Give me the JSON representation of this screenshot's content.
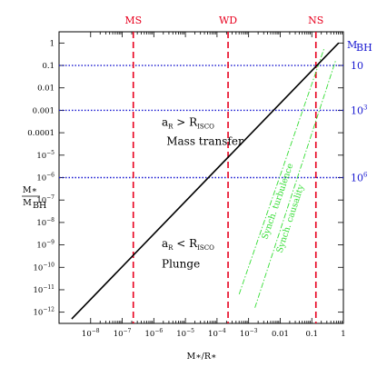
{
  "chart_data": {
    "type": "line",
    "xlabel": "M∗/R∗",
    "ylabel_main": "M∗",
    "ylabel_sub": "M",
    "ylabel_sub_index": "BH",
    "xscale": "log",
    "yscale": "log",
    "xlim_exp": [
      -9,
      0
    ],
    "ylim_exp": [
      -12.5,
      0.5
    ],
    "x_ticks": [
      {
        "base": "10",
        "exp": "−8",
        "v": -8
      },
      {
        "base": "10",
        "exp": "−7",
        "v": -7
      },
      {
        "base": "10",
        "exp": "−6",
        "v": -6
      },
      {
        "base": "10",
        "exp": "−5",
        "v": -5
      },
      {
        "base": "10",
        "exp": "−4",
        "v": -4
      },
      {
        "base": "10",
        "exp": "−3",
        "v": -3
      },
      {
        "base": "0.01",
        "exp": "",
        "v": -2
      },
      {
        "base": "0.1",
        "exp": "",
        "v": -1
      },
      {
        "base": "1",
        "exp": "",
        "v": 0
      }
    ],
    "y_ticks": [
      {
        "base": "1",
        "exp": "",
        "v": 0
      },
      {
        "base": "0.1",
        "exp": "",
        "v": -1
      },
      {
        "base": "0.01",
        "exp": "",
        "v": -2
      },
      {
        "base": "0.001",
        "exp": "",
        "v": -3
      },
      {
        "base": "0.0001",
        "exp": "",
        "v": -4
      },
      {
        "base": "10",
        "exp": "−5",
        "v": -5
      },
      {
        "base": "10",
        "exp": "−6",
        "v": -6
      },
      {
        "base": "10",
        "exp": "−7",
        "v": -7
      },
      {
        "base": "10",
        "exp": "−8",
        "v": -8
      },
      {
        "base": "10",
        "exp": "−9",
        "v": -9
      },
      {
        "base": "10",
        "exp": "−10",
        "v": -10
      },
      {
        "base": "10",
        "exp": "−11",
        "v": -11
      },
      {
        "base": "10",
        "exp": "−12",
        "v": -12
      }
    ],
    "main_line": {
      "x": [
        -8.6,
        -0.15
      ],
      "y": [
        -12.3,
        0.0
      ]
    },
    "vertical_lines": [
      {
        "label": "MS",
        "x": -6.65
      },
      {
        "label": "WD",
        "x": -3.65
      },
      {
        "label": "NS",
        "x": -0.87
      }
    ],
    "horizontal_lines": [
      {
        "y": -1,
        "label_base": "10",
        "label_exp": ""
      },
      {
        "y": -3,
        "label_base": "10",
        "label_exp": "3"
      },
      {
        "y": -6,
        "label_base": "10",
        "label_exp": "6"
      }
    ],
    "right_axis_label": {
      "base": "M",
      "sub": "BH"
    },
    "green_lines": [
      {
        "label": "Synch. turbulence",
        "x": [
          -3.3,
          -0.6
        ],
        "y": [
          -11.2,
          -0.2
        ]
      },
      {
        "label": "Synch. causality",
        "x": [
          -2.8,
          -0.25
        ],
        "y": [
          -11.8,
          -0.8
        ]
      }
    ],
    "annotations": [
      {
        "id": "mt-cond",
        "main": "a",
        "sub": "R",
        "rel": " > R",
        "sub2": "ISCO",
        "x": -5.75,
        "y": -3.7
      },
      {
        "id": "mt",
        "text": "Mass transfer",
        "x": -5.6,
        "y": -4.55
      },
      {
        "id": "pl-cond",
        "main": "a",
        "sub": "R",
        "rel": " < R",
        "sub2": "ISCO",
        "x": -5.75,
        "y": -9.1
      },
      {
        "id": "pl",
        "text": "Plunge",
        "x": -5.75,
        "y": -10.0
      }
    ]
  }
}
